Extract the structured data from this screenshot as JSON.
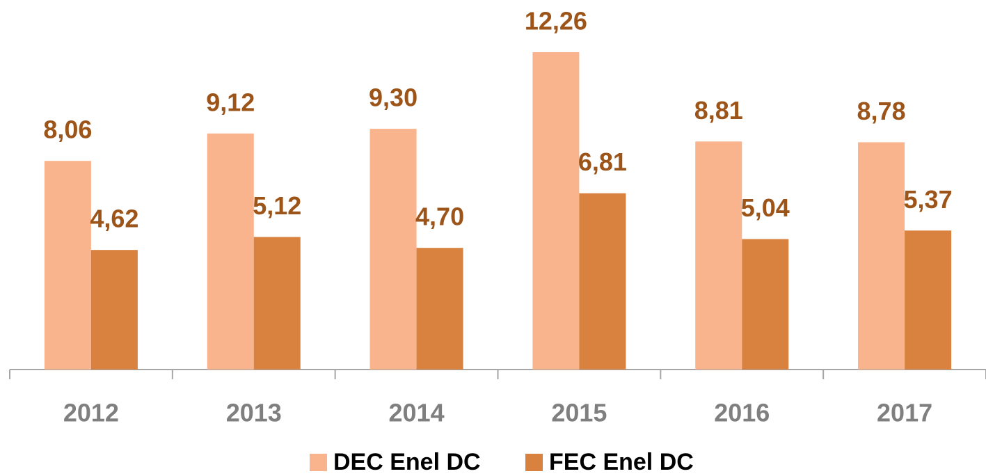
{
  "chart_data": {
    "type": "bar",
    "categories": [
      "2012",
      "2013",
      "2014",
      "2015",
      "2016",
      "2017"
    ],
    "series": [
      {
        "name": "DEC Enel DC",
        "color": "#f9b48d",
        "values": [
          8.06,
          9.12,
          9.3,
          12.26,
          8.81,
          8.78
        ],
        "value_labels": [
          "8,06",
          "9,12",
          "9,30",
          "12,26",
          "8,81",
          "8,78"
        ]
      },
      {
        "name": "FEC Enel DC",
        "color": "#d9823f",
        "values": [
          4.62,
          5.12,
          4.7,
          6.81,
          5.04,
          5.37
        ],
        "value_labels": [
          "4,62",
          "5,12",
          "4,70",
          "6,81",
          "5,04",
          "5,37"
        ]
      }
    ],
    "label_color": "#9c5419",
    "legend": "bottom"
  }
}
